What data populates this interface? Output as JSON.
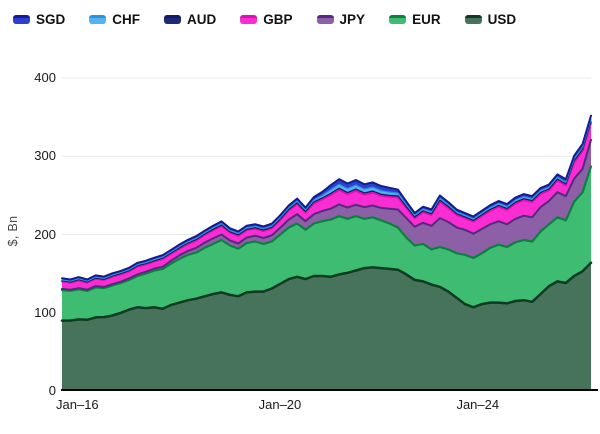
{
  "chart": {
    "background": "#ffffff",
    "grid_color": "#e8e8e8",
    "axis_line_color": "#000000",
    "y_axis_title": "$, Bn"
  },
  "legend": {
    "position": "top-left",
    "items": [
      "SGD",
      "CHF",
      "AUD",
      "GBP",
      "JPY",
      "EUR",
      "USD"
    ]
  },
  "chart_data": {
    "type": "area",
    "stacked": true,
    "title": "",
    "xlabel": "",
    "ylabel": "$, Bn",
    "ylim": [
      0,
      400
    ],
    "grid": true,
    "y_ticks": [
      0,
      100,
      200,
      300,
      400
    ],
    "x_ticks": [
      {
        "label": "Jan–16",
        "pos": 0.029
      },
      {
        "label": "Jan–20",
        "pos": 0.412
      },
      {
        "label": "Jan–24",
        "pos": 0.786
      }
    ],
    "x_note": "64 points, ~2-month spacing, Jan-2016 through 2026",
    "series": [
      {
        "name": "USD",
        "fill": "#46735a",
        "stroke": "#0d3a23",
        "stroke_width": 2.5,
        "values": [
          90,
          90,
          91.5,
          91,
          94,
          94.5,
          96.5,
          100,
          104,
          107,
          106,
          107,
          105,
          110,
          113,
          116,
          118,
          121,
          124,
          126,
          123,
          121,
          126,
          127,
          127,
          131,
          137,
          143,
          146,
          143,
          147,
          147,
          146,
          149,
          151,
          154,
          157,
          158,
          157,
          156,
          155,
          149,
          142,
          140,
          136,
          133,
          127,
          119,
          111,
          107,
          111,
          113,
          113,
          112,
          115,
          116,
          114,
          124,
          134,
          140,
          138,
          147,
          153,
          164
        ]
      },
      {
        "name": "EUR",
        "fill": "#3ebc71",
        "stroke": "#0c8040",
        "stroke_width": 2.2,
        "values": [
          39,
          38,
          38.5,
          37,
          38.5,
          37,
          38.5,
          38,
          38,
          40,
          44,
          47,
          51,
          53,
          56,
          58,
          59,
          62,
          64,
          67,
          63,
          61,
          63,
          64,
          61,
          60,
          63,
          66,
          68,
          63,
          67,
          70,
          73,
          74.5,
          69,
          69.5,
          63,
          64,
          61,
          58,
          54,
          47,
          44,
          48,
          45,
          51,
          54,
          57,
          63,
          63,
          65,
          70,
          74,
          72,
          75,
          77,
          77,
          80,
          79,
          82,
          80,
          95,
          101,
          123
        ]
      },
      {
        "name": "JPY",
        "fill": "#8d5fa6",
        "stroke": "#552a7e",
        "stroke_width": 2,
        "values": [
          1.5,
          1.5,
          1.5,
          1.5,
          1.5,
          1.5,
          1.6,
          1.7,
          2,
          2.2,
          2.4,
          2.5,
          2.8,
          3.5,
          4.5,
          5,
          6,
          6.5,
          7,
          7,
          6.5,
          6.5,
          7,
          7.5,
          7.5,
          8,
          8.5,
          10,
          12,
          11,
          12,
          13,
          14,
          15,
          14.5,
          14.5,
          15,
          15,
          16,
          19,
          23,
          25,
          24,
          27,
          30,
          37,
          35,
          33,
          32,
          31,
          31,
          30,
          30,
          29,
          30,
          31,
          31,
          31,
          30,
          32,
          31,
          29.5,
          30,
          34
        ]
      },
      {
        "name": "GBP",
        "fill": "#fa2dd2",
        "stroke": "#d911b4",
        "stroke_width": 2,
        "values": [
          9.5,
          9,
          10,
          9,
          9.5,
          9,
          9.5,
          9.5,
          9,
          10,
          9.5,
          9,
          10,
          9,
          8.5,
          9,
          9.5,
          10,
          10.5,
          11,
          10,
          10,
          9.5,
          9,
          9,
          9,
          10,
          11.5,
          13,
          11,
          14,
          15,
          17.5,
          18.5,
          17,
          18,
          16,
          16.5,
          15.5,
          15,
          15.5,
          13,
          11,
          13.5,
          14,
          21,
          18,
          16,
          15,
          15.5,
          16.5,
          17.5,
          18.5,
          18.5,
          19.5,
          20,
          19.5,
          17,
          13.5,
          15,
          14,
          21,
          23,
          21.5
        ]
      },
      {
        "name": "AUD",
        "fill": "#1e2a78",
        "stroke": "#131c5e",
        "stroke_width": 1.2,
        "values": [
          0.8,
          0.8,
          0.8,
          0.8,
          0.8,
          0.8,
          0.8,
          0.8,
          0.9,
          0.9,
          0.9,
          1,
          1,
          1,
          1.1,
          1.1,
          1.1,
          1.1,
          1.1,
          1.2,
          1.1,
          1.1,
          1.2,
          1.2,
          1.2,
          1.2,
          1.3,
          1.4,
          1.5,
          1.4,
          1.6,
          1.8,
          2,
          2.2,
          2.2,
          2.2,
          2.1,
          2.1,
          2,
          2,
          1.9,
          1.7,
          1.5,
          1.6,
          1.6,
          1.9,
          1.8,
          1.6,
          1.5,
          1.5,
          1.6,
          1.6,
          1.7,
          1.7,
          1.8,
          1.8,
          1.8,
          1.8,
          1.7,
          1.8,
          1.7,
          1.9,
          2,
          2.2
        ]
      },
      {
        "name": "CHF",
        "fill": "#50b4f0",
        "stroke": "#2d93d8",
        "stroke_width": 1.2,
        "values": [
          1.2,
          1.2,
          1.2,
          1.2,
          1.2,
          1.2,
          1.3,
          1.3,
          1.4,
          1.4,
          1.4,
          1.5,
          1.5,
          1.5,
          1.6,
          1.6,
          1.7,
          1.7,
          1.8,
          1.8,
          1.7,
          1.7,
          1.8,
          1.8,
          1.8,
          1.9,
          2,
          2.1,
          2.2,
          2,
          2.5,
          3.2,
          4.5,
          5,
          5,
          5,
          4.8,
          4.8,
          4.5,
          4.2,
          3.5,
          2.8,
          2.2,
          2.4,
          2.4,
          2.6,
          2.4,
          2.2,
          2.1,
          2.1,
          2.2,
          2.3,
          2.4,
          2.4,
          2.5,
          2.5,
          2.5,
          2.4,
          2.3,
          2.4,
          2.3,
          2.5,
          2.6,
          2.8
        ]
      },
      {
        "name": "SGD",
        "fill": "#2d3ed2",
        "stroke": "#131c8e",
        "stroke_width": 2,
        "values": [
          2,
          2,
          2,
          2,
          2.2,
          2.2,
          2.2,
          2.2,
          2.3,
          2.3,
          2.3,
          2.4,
          2.4,
          2.5,
          2.5,
          2.5,
          2.6,
          2.6,
          2.7,
          2.7,
          2.6,
          2.6,
          2.7,
          2.7,
          2.7,
          2.8,
          2.9,
          3,
          3.2,
          3,
          3.8,
          4.5,
          6,
          6.5,
          6.5,
          6.5,
          6.2,
          6.2,
          6,
          5.5,
          4.5,
          3.5,
          2.8,
          3,
          3,
          3.4,
          3.2,
          3,
          2.9,
          2.9,
          3,
          3.1,
          3.2,
          3.2,
          3.3,
          3.3,
          3.3,
          3.2,
          3.4,
          3.6,
          3.5,
          3.8,
          4,
          4.5
        ]
      }
    ]
  }
}
